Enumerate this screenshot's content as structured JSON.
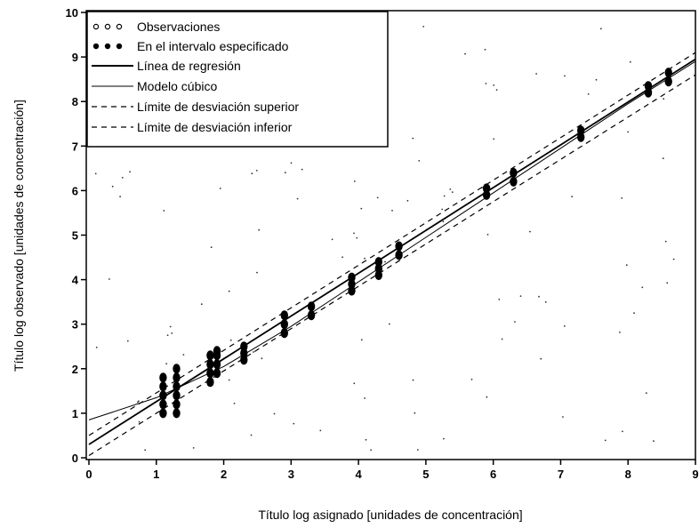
{
  "chart_data": {
    "type": "scatter",
    "xlabel": "Título log asignado [unidades de concentración]",
    "ylabel": "Título log observado [unidades de concentración]",
    "xlim": [
      0,
      9
    ],
    "ylim": [
      0,
      10
    ],
    "xticks": [
      0,
      1,
      2,
      3,
      4,
      5,
      6,
      7,
      8,
      9
    ],
    "yticks": [
      0,
      1,
      2,
      3,
      4,
      5,
      6,
      7,
      8,
      9,
      10
    ],
    "grid": false,
    "legend_position": "top-left",
    "legend": [
      {
        "label": "Observaciones",
        "style": "open-circles"
      },
      {
        "label": "En el intervalo especificado",
        "style": "filled-circles"
      },
      {
        "label": "Línea de regresión",
        "style": "solid-thick"
      },
      {
        "label": "Modelo cúbico",
        "style": "solid-thin"
      },
      {
        "label": "Límite de desviación superior",
        "style": "dashed"
      },
      {
        "label": "Límite de desviación inferior",
        "style": "dashed"
      }
    ],
    "points_in_range": [
      {
        "x": 1.1,
        "y": [
          1.0,
          1.2,
          1.4,
          1.6,
          1.8
        ]
      },
      {
        "x": 1.3,
        "y": [
          1.0,
          1.2,
          1.4,
          1.6,
          1.8,
          2.0
        ]
      },
      {
        "x": 1.8,
        "y": [
          1.7,
          1.9,
          2.1,
          2.3
        ]
      },
      {
        "x": 1.9,
        "y": [
          1.9,
          2.1,
          2.3,
          2.4
        ]
      },
      {
        "x": 2.3,
        "y": [
          2.2,
          2.35,
          2.5
        ]
      },
      {
        "x": 2.9,
        "y": [
          2.8,
          3.0,
          3.2
        ]
      },
      {
        "x": 3.3,
        "y": [
          3.2,
          3.4
        ]
      },
      {
        "x": 3.9,
        "y": [
          3.75,
          3.9,
          4.05
        ]
      },
      {
        "x": 4.3,
        "y": [
          4.1,
          4.25,
          4.4
        ]
      },
      {
        "x": 4.6,
        "y": [
          4.55,
          4.75
        ]
      },
      {
        "x": 5.9,
        "y": [
          5.9,
          6.05
        ]
      },
      {
        "x": 6.3,
        "y": [
          6.2,
          6.4
        ]
      },
      {
        "x": 7.3,
        "y": [
          7.2,
          7.35
        ]
      },
      {
        "x": 8.3,
        "y": [
          8.2,
          8.35
        ]
      },
      {
        "x": 8.6,
        "y": [
          8.45,
          8.65
        ]
      }
    ],
    "series": [
      {
        "name": "Línea de regresión",
        "x": [
          0,
          9
        ],
        "y": [
          0.3,
          8.95
        ]
      },
      {
        "name": "Modelo cúbico",
        "x": [
          0,
          1,
          2,
          3,
          4,
          5,
          6,
          7,
          8,
          9
        ],
        "y": [
          0.85,
          1.35,
          2.05,
          2.95,
          3.95,
          4.95,
          5.95,
          6.95,
          7.95,
          8.9
        ]
      },
      {
        "name": "Límite de desviación superior",
        "x": [
          0,
          9
        ],
        "y": [
          0.5,
          9.1
        ]
      },
      {
        "name": "Límite de desviación inferior",
        "x": [
          0,
          9
        ],
        "y": [
          0.05,
          8.6
        ]
      }
    ]
  }
}
